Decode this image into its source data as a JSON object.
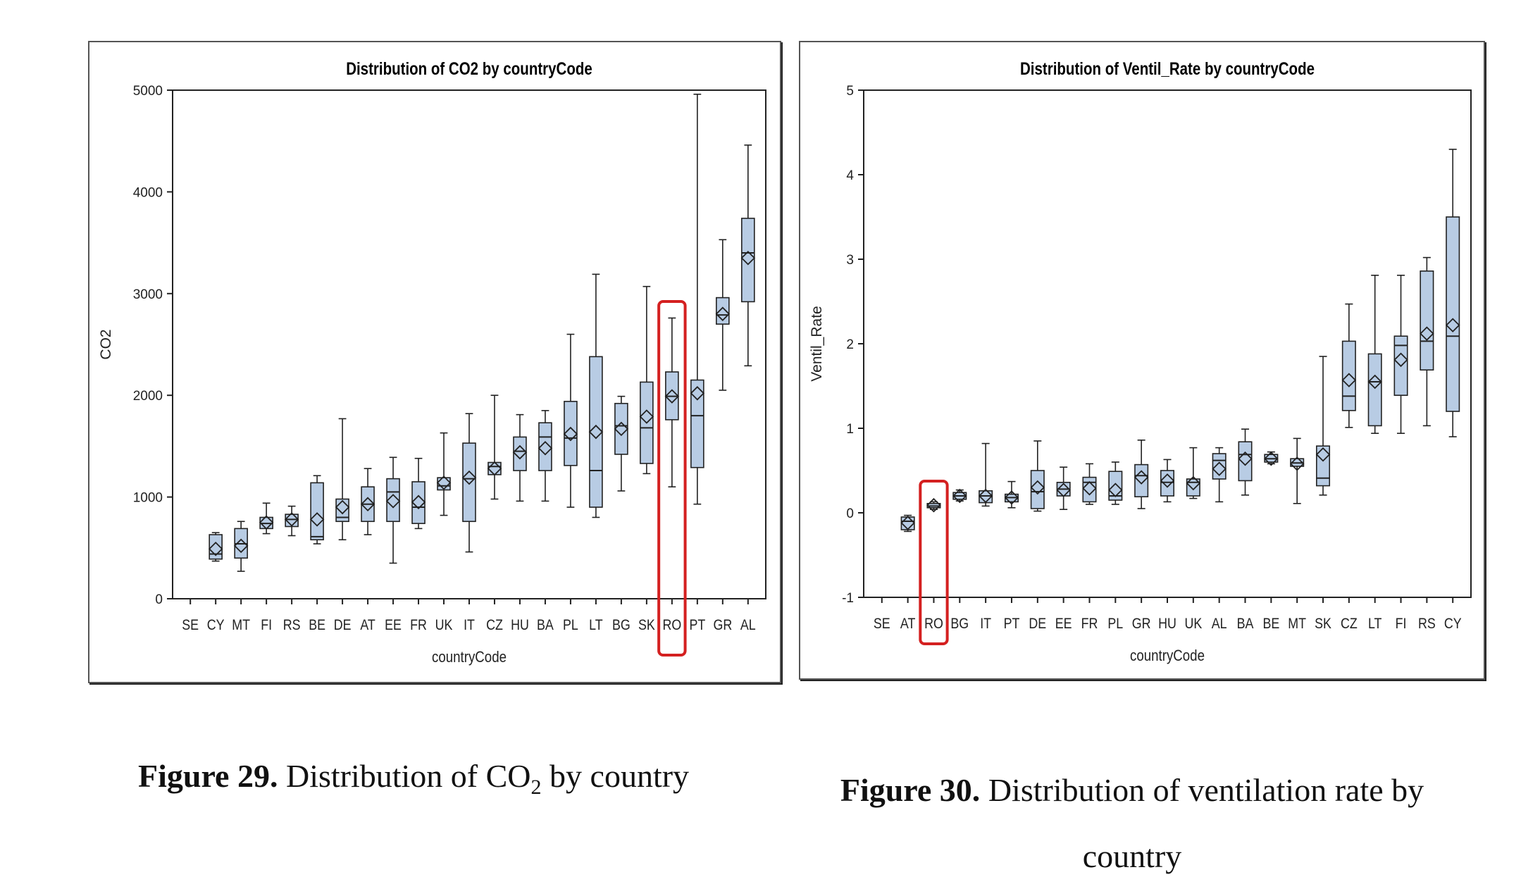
{
  "chart_data": [
    {
      "type": "box",
      "title": "Distribution of CO2 by countryCode",
      "xlabel": "countryCode",
      "ylabel": "CO2",
      "ylim": [
        0,
        5000
      ],
      "yticks": [
        0,
        1000,
        2000,
        3000,
        4000,
        5000
      ],
      "grid": false,
      "box_fill": "#b8cce4",
      "highlight": {
        "category": "RO",
        "color": "#d42020"
      },
      "categories": [
        "SE",
        "CY",
        "MT",
        "FI",
        "RS",
        "BE",
        "DE",
        "AT",
        "EE",
        "FR",
        "UK",
        "IT",
        "CZ",
        "HU",
        "BA",
        "PL",
        "LT",
        "BG",
        "SK",
        "RO",
        "PT",
        "GR",
        "AL"
      ],
      "boxes": [
        null,
        {
          "min": 370,
          "q1": 390,
          "median": 440,
          "q3": 630,
          "max": 650,
          "mean": 490
        },
        {
          "min": 270,
          "q1": 400,
          "median": 540,
          "q3": 690,
          "max": 760,
          "mean": 520
        },
        {
          "min": 640,
          "q1": 690,
          "median": 740,
          "q3": 800,
          "max": 940,
          "mean": 750
        },
        {
          "min": 620,
          "q1": 710,
          "median": 780,
          "q3": 830,
          "max": 910,
          "mean": 780
        },
        {
          "min": 540,
          "q1": 580,
          "median": 610,
          "q3": 1140,
          "max": 1210,
          "mean": 780
        },
        {
          "min": 580,
          "q1": 760,
          "median": 800,
          "q3": 980,
          "max": 1770,
          "mean": 900
        },
        {
          "min": 630,
          "q1": 760,
          "median": 930,
          "q3": 1100,
          "max": 1280,
          "mean": 930
        },
        {
          "min": 350,
          "q1": 760,
          "median": 1050,
          "q3": 1180,
          "max": 1390,
          "mean": 960
        },
        {
          "min": 690,
          "q1": 740,
          "median": 900,
          "q3": 1150,
          "max": 1380,
          "mean": 950
        },
        {
          "min": 820,
          "q1": 1070,
          "median": 1110,
          "q3": 1190,
          "max": 1630,
          "mean": 1140
        },
        {
          "min": 460,
          "q1": 760,
          "median": 1180,
          "q3": 1530,
          "max": 1820,
          "mean": 1190
        },
        {
          "min": 980,
          "q1": 1220,
          "median": 1300,
          "q3": 1340,
          "max": 2000,
          "mean": 1280
        },
        {
          "min": 960,
          "q1": 1260,
          "median": 1450,
          "q3": 1590,
          "max": 1810,
          "mean": 1440
        },
        {
          "min": 960,
          "q1": 1260,
          "median": 1590,
          "q3": 1730,
          "max": 1850,
          "mean": 1480
        },
        {
          "min": 900,
          "q1": 1310,
          "median": 1580,
          "q3": 1940,
          "max": 2600,
          "mean": 1620
        },
        {
          "min": 800,
          "q1": 900,
          "median": 1260,
          "q3": 2380,
          "max": 3190,
          "mean": 1640
        },
        {
          "min": 1060,
          "q1": 1420,
          "median": 1700,
          "q3": 1920,
          "max": 1990,
          "mean": 1670
        },
        {
          "min": 1230,
          "q1": 1330,
          "median": 1680,
          "q3": 2130,
          "max": 3070,
          "mean": 1790
        },
        {
          "min": 1100,
          "q1": 1760,
          "median": 1990,
          "q3": 2230,
          "max": 2760,
          "mean": 1990
        },
        {
          "min": 930,
          "q1": 1290,
          "median": 1800,
          "q3": 2150,
          "max": 4960,
          "mean": 2020
        },
        {
          "min": 2050,
          "q1": 2700,
          "median": 2790,
          "q3": 2960,
          "max": 3530,
          "mean": 2800
        },
        {
          "min": 2290,
          "q1": 2920,
          "median": 3400,
          "q3": 3740,
          "max": 4460,
          "mean": 3350
        }
      ]
    },
    {
      "type": "box",
      "title": "Distribution of Ventil_Rate by countryCode",
      "xlabel": "countryCode",
      "ylabel": "Ventil_Rate",
      "ylim": [
        -1,
        5
      ],
      "yticks": [
        -1,
        0,
        1,
        2,
        3,
        4,
        5
      ],
      "grid": false,
      "box_fill": "#b8cce4",
      "highlight": {
        "category": "RO",
        "color": "#d42020"
      },
      "categories": [
        "SE",
        "AT",
        "RO",
        "BG",
        "IT",
        "PT",
        "DE",
        "EE",
        "FR",
        "PL",
        "GR",
        "HU",
        "UK",
        "AL",
        "BA",
        "BE",
        "MT",
        "SK",
        "CZ",
        "LT",
        "FI",
        "RS",
        "CY"
      ],
      "boxes": [
        null,
        {
          "min": -0.22,
          "q1": -0.2,
          "median": -0.1,
          "q3": -0.05,
          "max": -0.03,
          "mean": -0.12
        },
        {
          "min": 0.04,
          "q1": 0.06,
          "median": 0.08,
          "q3": 0.11,
          "max": 0.13,
          "mean": 0.09
        },
        {
          "min": 0.14,
          "q1": 0.16,
          "median": 0.2,
          "q3": 0.24,
          "max": 0.27,
          "mean": 0.2
        },
        {
          "min": 0.08,
          "q1": 0.12,
          "median": 0.2,
          "q3": 0.26,
          "max": 0.82,
          "mean": 0.2
        },
        {
          "min": 0.06,
          "q1": 0.13,
          "median": 0.18,
          "q3": 0.22,
          "max": 0.37,
          "mean": 0.18
        },
        {
          "min": 0.02,
          "q1": 0.05,
          "median": 0.25,
          "q3": 0.5,
          "max": 0.85,
          "mean": 0.3
        },
        {
          "min": 0.04,
          "q1": 0.2,
          "median": 0.28,
          "q3": 0.36,
          "max": 0.54,
          "mean": 0.27
        },
        {
          "min": 0.1,
          "q1": 0.13,
          "median": 0.36,
          "q3": 0.42,
          "max": 0.58,
          "mean": 0.29
        },
        {
          "min": 0.1,
          "q1": 0.15,
          "median": 0.2,
          "q3": 0.49,
          "max": 0.6,
          "mean": 0.27
        },
        {
          "min": 0.05,
          "q1": 0.19,
          "median": 0.44,
          "q3": 0.57,
          "max": 0.86,
          "mean": 0.42
        },
        {
          "min": 0.13,
          "q1": 0.2,
          "median": 0.36,
          "q3": 0.5,
          "max": 0.63,
          "mean": 0.38
        },
        {
          "min": 0.17,
          "q1": 0.2,
          "median": 0.36,
          "q3": 0.4,
          "max": 0.77,
          "mean": 0.35
        },
        {
          "min": 0.13,
          "q1": 0.4,
          "median": 0.62,
          "q3": 0.7,
          "max": 0.77,
          "mean": 0.52
        },
        {
          "min": 0.21,
          "q1": 0.38,
          "median": 0.69,
          "q3": 0.84,
          "max": 0.99,
          "mean": 0.64
        },
        {
          "min": 0.58,
          "q1": 0.6,
          "median": 0.64,
          "q3": 0.69,
          "max": 0.72,
          "mean": 0.64
        },
        {
          "min": 0.11,
          "q1": 0.55,
          "median": 0.59,
          "q3": 0.64,
          "max": 0.88,
          "mean": 0.58
        },
        {
          "min": 0.21,
          "q1": 0.32,
          "median": 0.41,
          "q3": 0.79,
          "max": 1.85,
          "mean": 0.69
        },
        {
          "min": 1.01,
          "q1": 1.21,
          "median": 1.38,
          "q3": 2.03,
          "max": 2.47,
          "mean": 1.57
        },
        {
          "min": 0.94,
          "q1": 1.03,
          "median": 1.55,
          "q3": 1.88,
          "max": 2.81,
          "mean": 1.55
        },
        {
          "min": 0.94,
          "q1": 1.39,
          "median": 1.98,
          "q3": 2.09,
          "max": 2.81,
          "mean": 1.81
        },
        {
          "min": 1.03,
          "q1": 1.69,
          "median": 2.03,
          "q3": 2.86,
          "max": 3.02,
          "mean": 2.12
        },
        {
          "min": 0.9,
          "q1": 1.2,
          "median": 2.09,
          "q3": 3.5,
          "max": 4.3,
          "mean": 2.22
        }
      ]
    }
  ],
  "captions": {
    "left": {
      "label": "Figure 29.",
      "text_before_sub": "Distribution of CO",
      "sub": "2",
      "text_after_sub": " by country"
    },
    "right": {
      "label": "Figure 30.",
      "text": "Distribution of ventilation   rate by country"
    }
  }
}
